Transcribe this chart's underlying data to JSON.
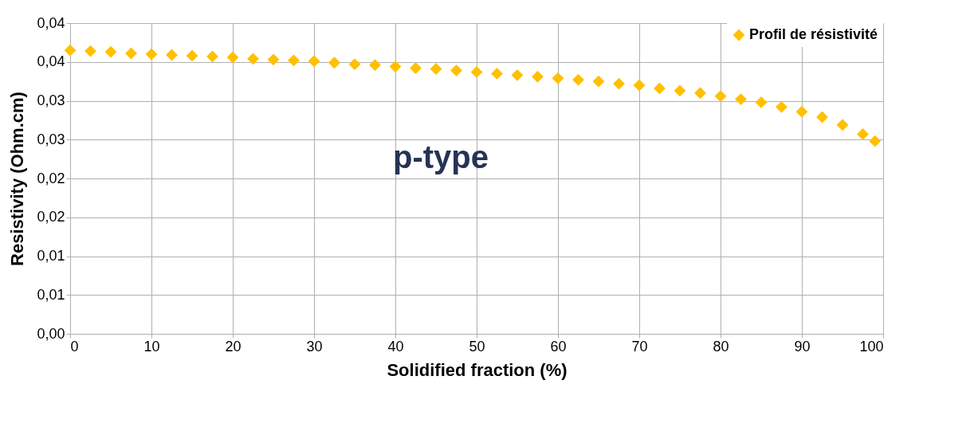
{
  "chart_data": {
    "type": "scatter",
    "xlabel": "Solidified fraction (%)",
    "ylabel": "Resistivity (Ohm.cm)",
    "x": [
      0,
      2.5,
      5,
      7.5,
      10,
      12.5,
      15,
      17.5,
      20,
      22.5,
      25,
      27.5,
      30,
      32.5,
      35,
      37.5,
      40,
      42.5,
      45,
      47.5,
      50,
      52.5,
      55,
      57.5,
      60,
      62.5,
      65,
      67.5,
      70,
      72.5,
      75,
      77.5,
      80,
      82.5,
      85,
      87.5,
      90,
      92.5,
      95,
      97.5,
      99
    ],
    "series": [
      {
        "name": "Profil de résistivité",
        "color": "#ffc000",
        "values": [
          0.0365,
          0.0364,
          0.0363,
          0.0361,
          0.036,
          0.0359,
          0.0358,
          0.0357,
          0.0356,
          0.0354,
          0.0353,
          0.0352,
          0.0351,
          0.0349,
          0.0347,
          0.0346,
          0.0344,
          0.0342,
          0.0341,
          0.0339,
          0.0337,
          0.0335,
          0.0333,
          0.0331,
          0.0329,
          0.0327,
          0.0325,
          0.0322,
          0.032,
          0.0316,
          0.0313,
          0.031,
          0.0306,
          0.0302,
          0.0298,
          0.0292,
          0.0286,
          0.0279,
          0.0269,
          0.0257,
          0.0248
        ]
      }
    ],
    "xlim": [
      0,
      100
    ],
    "xticks": [
      0,
      10,
      20,
      30,
      40,
      50,
      60,
      70,
      80,
      90,
      100
    ],
    "ylim": [
      0,
      0.04
    ],
    "yticks": [
      {
        "value": 0,
        "label": "0,00"
      },
      {
        "value": 0.005,
        "label": "0,01"
      },
      {
        "value": 0.01,
        "label": "0,01"
      },
      {
        "value": 0.015,
        "label": "0,02"
      },
      {
        "value": 0.02,
        "label": "0,02"
      },
      {
        "value": 0.025,
        "label": "0,03"
      },
      {
        "value": 0.03,
        "label": "0,03"
      },
      {
        "value": 0.035,
        "label": "0,04"
      },
      {
        "value": 0.04,
        "label": "0,04"
      }
    ],
    "annotations": [
      "p-type"
    ],
    "grid": true,
    "legend": "top right",
    "marker": "diamond"
  }
}
